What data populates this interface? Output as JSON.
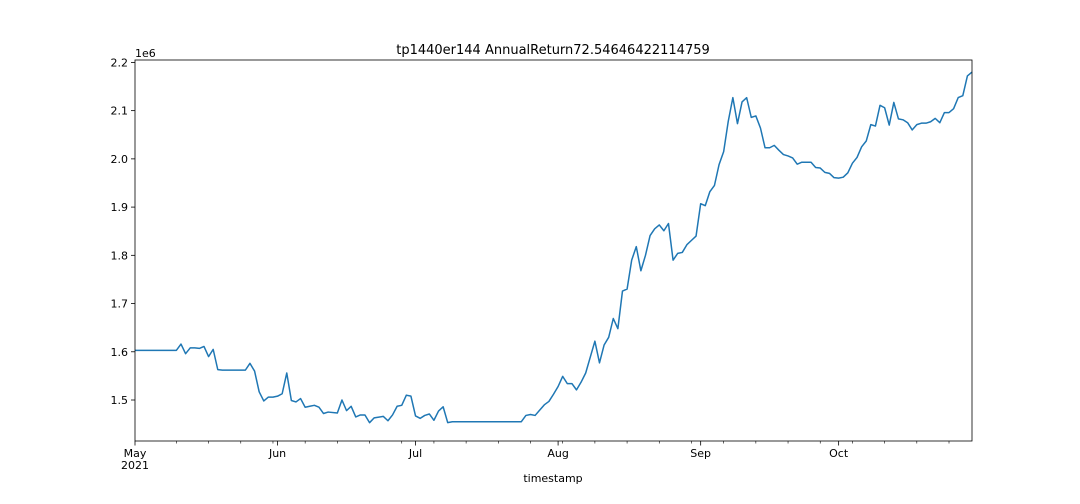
{
  "chart_data": {
    "type": "line",
    "title": "tp1440er144 AnnualReturn72.54646422114759",
    "xlabel": "timestamp",
    "ylabel": "",
    "y_offset_label": "1e6",
    "y_ticks": [
      1.5,
      1.6,
      1.7,
      1.8,
      1.9,
      2.0,
      2.1,
      2.2
    ],
    "y_tick_labels": [
      "1.5",
      "1.6",
      "1.7",
      "1.8",
      "1.9",
      "2.0",
      "2.1",
      "2.2"
    ],
    "ylim": [
      1.415,
      2.205
    ],
    "xlim": [
      "2021-05-01",
      "2021-10-30"
    ],
    "x_major_ticks": [
      {
        "date": "2021-05-01",
        "label": "May",
        "sublabel": "2021"
      },
      {
        "date": "2021-06-01",
        "label": "Jun",
        "sublabel": ""
      },
      {
        "date": "2021-07-01",
        "label": "Jul",
        "sublabel": ""
      },
      {
        "date": "2021-08-01",
        "label": "Aug",
        "sublabel": ""
      },
      {
        "date": "2021-09-01",
        "label": "Sep",
        "sublabel": ""
      },
      {
        "date": "2021-10-01",
        "label": "Oct",
        "sublabel": ""
      }
    ],
    "x_minor_ticks": [
      "2021-05-10",
      "2021-05-17",
      "2021-05-24",
      "2021-05-31",
      "2021-06-07",
      "2021-06-14",
      "2021-06-21",
      "2021-06-28",
      "2021-07-05",
      "2021-07-12",
      "2021-07-19",
      "2021-07-26",
      "2021-08-02",
      "2021-08-09",
      "2021-08-16",
      "2021-08-23",
      "2021-08-30",
      "2021-09-06",
      "2021-09-13",
      "2021-09-20",
      "2021-09-27",
      "2021-10-04",
      "2021-10-11",
      "2021-10-18",
      "2021-10-25"
    ],
    "grid": false,
    "series": [
      {
        "color": "#1f77b4",
        "points": [
          [
            "2021-05-01",
            1.603
          ],
          [
            "2021-05-10",
            1.603
          ],
          [
            "2021-05-11",
            1.616
          ],
          [
            "2021-05-12",
            1.596
          ],
          [
            "2021-05-13",
            1.608
          ],
          [
            "2021-05-14",
            1.608
          ],
          [
            "2021-05-15",
            1.607
          ],
          [
            "2021-05-16",
            1.611
          ],
          [
            "2021-05-17",
            1.59
          ],
          [
            "2021-05-18",
            1.605
          ],
          [
            "2021-05-19",
            1.563
          ],
          [
            "2021-05-20",
            1.562
          ],
          [
            "2021-05-25",
            1.562
          ],
          [
            "2021-05-26",
            1.576
          ],
          [
            "2021-05-27",
            1.56
          ],
          [
            "2021-05-28",
            1.517
          ],
          [
            "2021-05-29",
            1.498
          ],
          [
            "2021-05-30",
            1.506
          ],
          [
            "2021-05-31",
            1.506
          ],
          [
            "2021-06-01",
            1.508
          ],
          [
            "2021-06-02",
            1.513
          ],
          [
            "2021-06-03",
            1.556
          ],
          [
            "2021-06-04",
            1.499
          ],
          [
            "2021-06-05",
            1.496
          ],
          [
            "2021-06-06",
            1.503
          ],
          [
            "2021-06-07",
            1.485
          ],
          [
            "2021-06-08",
            1.487
          ],
          [
            "2021-06-09",
            1.489
          ],
          [
            "2021-06-10",
            1.485
          ],
          [
            "2021-06-11",
            1.472
          ],
          [
            "2021-06-12",
            1.475
          ],
          [
            "2021-06-14",
            1.473
          ],
          [
            "2021-06-15",
            1.5
          ],
          [
            "2021-06-16",
            1.478
          ],
          [
            "2021-06-17",
            1.487
          ],
          [
            "2021-06-18",
            1.465
          ],
          [
            "2021-06-19",
            1.469
          ],
          [
            "2021-06-20",
            1.469
          ],
          [
            "2021-06-21",
            1.453
          ],
          [
            "2021-06-22",
            1.463
          ],
          [
            "2021-06-24",
            1.466
          ],
          [
            "2021-06-25",
            1.457
          ],
          [
            "2021-06-26",
            1.469
          ],
          [
            "2021-06-27",
            1.487
          ],
          [
            "2021-06-28",
            1.489
          ],
          [
            "2021-06-29",
            1.51
          ],
          [
            "2021-06-30",
            1.508
          ],
          [
            "2021-07-01",
            1.467
          ],
          [
            "2021-07-02",
            1.462
          ],
          [
            "2021-07-03",
            1.468
          ],
          [
            "2021-07-04",
            1.471
          ],
          [
            "2021-07-05",
            1.458
          ],
          [
            "2021-07-06",
            1.477
          ],
          [
            "2021-07-07",
            1.486
          ],
          [
            "2021-07-08",
            1.453
          ],
          [
            "2021-07-09",
            1.455
          ],
          [
            "2021-07-24",
            1.455
          ],
          [
            "2021-07-25",
            1.468
          ],
          [
            "2021-07-26",
            1.47
          ],
          [
            "2021-07-27",
            1.468
          ],
          [
            "2021-07-28",
            1.479
          ],
          [
            "2021-07-29",
            1.49
          ],
          [
            "2021-07-30",
            1.497
          ],
          [
            "2021-07-31",
            1.512
          ],
          [
            "2021-08-01",
            1.528
          ],
          [
            "2021-08-02",
            1.549
          ],
          [
            "2021-08-03",
            1.534
          ],
          [
            "2021-08-04",
            1.534
          ],
          [
            "2021-08-05",
            1.521
          ],
          [
            "2021-08-06",
            1.537
          ],
          [
            "2021-08-07",
            1.556
          ],
          [
            "2021-08-08",
            1.589
          ],
          [
            "2021-08-09",
            1.622
          ],
          [
            "2021-08-10",
            1.577
          ],
          [
            "2021-08-11",
            1.614
          ],
          [
            "2021-08-12",
            1.63
          ],
          [
            "2021-08-13",
            1.669
          ],
          [
            "2021-08-14",
            1.648
          ],
          [
            "2021-08-15",
            1.726
          ],
          [
            "2021-08-16",
            1.73
          ],
          [
            "2021-08-17",
            1.79
          ],
          [
            "2021-08-18",
            1.818
          ],
          [
            "2021-08-19",
            1.768
          ],
          [
            "2021-08-20",
            1.8
          ],
          [
            "2021-08-21",
            1.841
          ],
          [
            "2021-08-22",
            1.855
          ],
          [
            "2021-08-23",
            1.863
          ],
          [
            "2021-08-24",
            1.851
          ],
          [
            "2021-08-25",
            1.866
          ],
          [
            "2021-08-26",
            1.79
          ],
          [
            "2021-08-27",
            1.804
          ],
          [
            "2021-08-28",
            1.806
          ],
          [
            "2021-08-29",
            1.822
          ],
          [
            "2021-08-30",
            1.831
          ],
          [
            "2021-08-31",
            1.84
          ],
          [
            "2021-09-01",
            1.907
          ],
          [
            "2021-09-02",
            1.903
          ],
          [
            "2021-09-03",
            1.932
          ],
          [
            "2021-09-04",
            1.945
          ],
          [
            "2021-09-05",
            1.988
          ],
          [
            "2021-09-06",
            2.015
          ],
          [
            "2021-09-07",
            2.078
          ],
          [
            "2021-09-08",
            2.127
          ],
          [
            "2021-09-09",
            2.073
          ],
          [
            "2021-09-10",
            2.118
          ],
          [
            "2021-09-11",
            2.127
          ],
          [
            "2021-09-12",
            2.086
          ],
          [
            "2021-09-13",
            2.089
          ],
          [
            "2021-09-14",
            2.064
          ],
          [
            "2021-09-15",
            2.023
          ],
          [
            "2021-09-16",
            2.023
          ],
          [
            "2021-09-17",
            2.028
          ],
          [
            "2021-09-18",
            2.018
          ],
          [
            "2021-09-19",
            2.009
          ],
          [
            "2021-09-20",
            2.006
          ],
          [
            "2021-09-21",
            2.002
          ],
          [
            "2021-09-22",
            1.989
          ],
          [
            "2021-09-23",
            1.993
          ],
          [
            "2021-09-24",
            1.993
          ],
          [
            "2021-09-25",
            1.993
          ],
          [
            "2021-09-26",
            1.982
          ],
          [
            "2021-09-27",
            1.981
          ],
          [
            "2021-09-28",
            1.972
          ],
          [
            "2021-09-29",
            1.97
          ],
          [
            "2021-09-30",
            1.961
          ],
          [
            "2021-10-01",
            1.96
          ],
          [
            "2021-10-02",
            1.962
          ],
          [
            "2021-10-03",
            1.971
          ],
          [
            "2021-10-04",
            1.991
          ],
          [
            "2021-10-05",
            2.003
          ],
          [
            "2021-10-06",
            2.025
          ],
          [
            "2021-10-07",
            2.037
          ],
          [
            "2021-10-08",
            2.071
          ],
          [
            "2021-10-09",
            2.068
          ],
          [
            "2021-10-10",
            2.111
          ],
          [
            "2021-10-11",
            2.106
          ],
          [
            "2021-10-12",
            2.07
          ],
          [
            "2021-10-13",
            2.117
          ],
          [
            "2021-10-14",
            2.083
          ],
          [
            "2021-10-15",
            2.081
          ],
          [
            "2021-10-16",
            2.075
          ],
          [
            "2021-10-17",
            2.06
          ],
          [
            "2021-10-18",
            2.071
          ],
          [
            "2021-10-19",
            2.074
          ],
          [
            "2021-10-20",
            2.074
          ],
          [
            "2021-10-21",
            2.077
          ],
          [
            "2021-10-22",
            2.084
          ],
          [
            "2021-10-23",
            2.075
          ],
          [
            "2021-10-24",
            2.096
          ],
          [
            "2021-10-25",
            2.096
          ],
          [
            "2021-10-26",
            2.104
          ],
          [
            "2021-10-27",
            2.127
          ],
          [
            "2021-10-28",
            2.131
          ],
          [
            "2021-10-29",
            2.172
          ],
          [
            "2021-10-30",
            2.18
          ]
        ]
      }
    ]
  }
}
